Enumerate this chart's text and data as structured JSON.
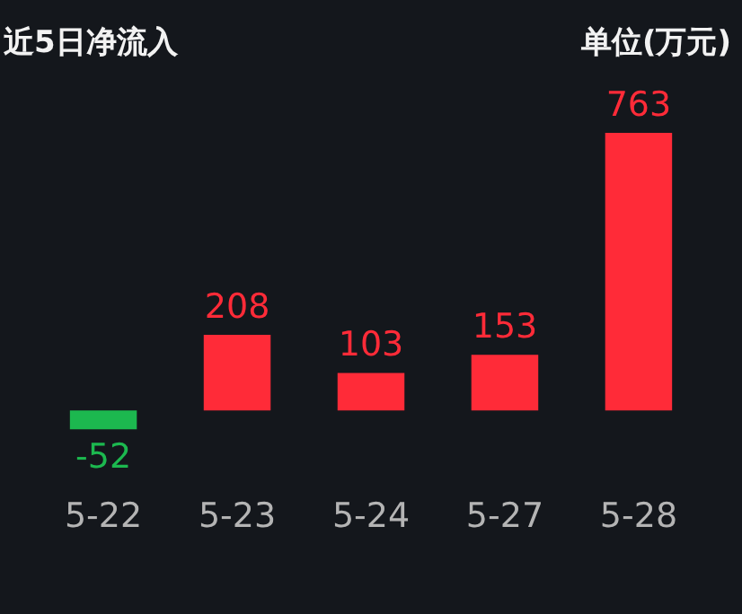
{
  "chart_data": {
    "type": "bar",
    "title": "近5日净流入",
    "subtitle": "单位(万元)",
    "categories": [
      "5-22",
      "5-23",
      "5-24",
      "5-27",
      "5-28"
    ],
    "values": [
      -52,
      208,
      103,
      153,
      763
    ],
    "colors": [
      "#1cb84f",
      "#ff2b38",
      "#ff2b38",
      "#ff2b38",
      "#ff2b38"
    ],
    "data_labels": true
  }
}
